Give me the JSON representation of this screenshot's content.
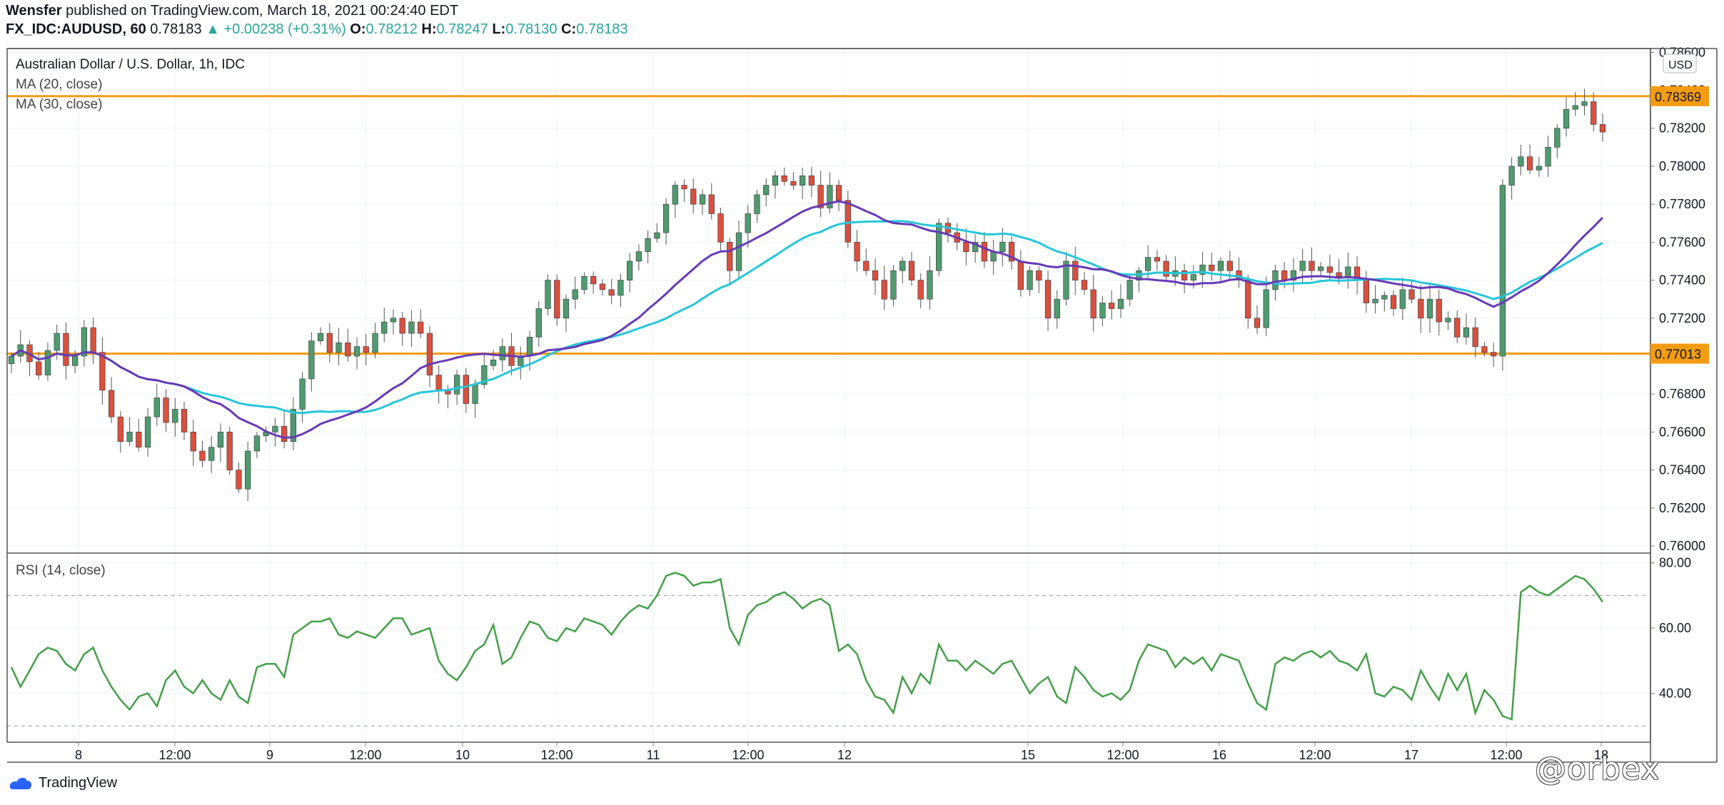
{
  "header": {
    "author": "Wensfer",
    "published_text": "published on TradingView.com, March 18, 2021 00:24:40 EDT",
    "symbol": "FX_IDC:AUDUSD, 60",
    "last": "0.78183",
    "change_arrow": "▲",
    "change": "+0.00238 (+0.31%)",
    "o_label": "O:",
    "o_value": "0.78212",
    "h_label": "H:",
    "h_value": "0.78247",
    "l_label": "L:",
    "l_value": "0.78130",
    "c_label": "C:",
    "c_value": "0.78183"
  },
  "legend": {
    "title": "Australian Dollar / U.S. Dollar, 1h, IDC",
    "ma20": "MA (20, close)",
    "ma30": "MA (30, close)",
    "rsi": "RSI (14, close)"
  },
  "footer": {
    "brand": "TradingView",
    "watermark": "@orbex"
  },
  "colors": {
    "up_candle": "#4f9b6f",
    "down_candle": "#d9503f",
    "ma20": "#673ab7",
    "ma30": "#26c6da",
    "rsi": "#43a047",
    "hline": "#f39c12"
  },
  "chart_data": [
    {
      "type": "candlestick",
      "title": "Australian Dollar / U.S. Dollar, 1h, IDC",
      "y_axis_unit_badge": "USD",
      "ylim": [
        0.7597,
        0.7862
      ],
      "y_ticks": [
        "0.78600",
        "0.78400",
        "0.78200",
        "0.78000",
        "0.77800",
        "0.77600",
        "0.77400",
        "0.77200",
        "0.77000",
        "0.76800",
        "0.76600",
        "0.76400",
        "0.76200",
        "0.76000"
      ],
      "x_ticks": [
        "8",
        "12:00",
        "9",
        "12:00",
        "10",
        "12:00",
        "11",
        "12:00",
        "12",
        "15",
        "12:00",
        "16",
        "12:00",
        "17",
        "12:00",
        "18"
      ],
      "horizontal_lines": [
        {
          "label": "0.78369",
          "value": 0.78369
        },
        {
          "label": "0.77013",
          "value": 0.77013
        }
      ],
      "close_path": [
        0.77,
        0.7706,
        0.7697,
        0.769,
        0.7703,
        0.7712,
        0.7695,
        0.77,
        0.7715,
        0.7702,
        0.7682,
        0.7668,
        0.7655,
        0.766,
        0.7652,
        0.7668,
        0.7678,
        0.7665,
        0.7672,
        0.766,
        0.765,
        0.7645,
        0.7652,
        0.766,
        0.764,
        0.763,
        0.765,
        0.7658,
        0.766,
        0.7663,
        0.7655,
        0.7672,
        0.7688,
        0.7708,
        0.7712,
        0.7702,
        0.7707,
        0.77,
        0.7705,
        0.7702,
        0.7712,
        0.7718,
        0.772,
        0.7712,
        0.7718,
        0.7712,
        0.769,
        0.7682,
        0.768,
        0.769,
        0.7675,
        0.7685,
        0.7695,
        0.7698,
        0.7705,
        0.7695,
        0.77,
        0.771,
        0.7725,
        0.774,
        0.772,
        0.773,
        0.7735,
        0.7742,
        0.7738,
        0.7735,
        0.7732,
        0.774,
        0.775,
        0.7755,
        0.7762,
        0.7765,
        0.778,
        0.779,
        0.7788,
        0.778,
        0.7785,
        0.7775,
        0.776,
        0.7745,
        0.7765,
        0.7775,
        0.7785,
        0.779,
        0.7795,
        0.7792,
        0.779,
        0.7795,
        0.779,
        0.7778,
        0.779,
        0.7782,
        0.776,
        0.775,
        0.7745,
        0.774,
        0.773,
        0.7745,
        0.775,
        0.774,
        0.773,
        0.7745,
        0.777,
        0.7765,
        0.776,
        0.7755,
        0.776,
        0.775,
        0.7755,
        0.776,
        0.775,
        0.7735,
        0.7745,
        0.774,
        0.772,
        0.773,
        0.775,
        0.774,
        0.7735,
        0.772,
        0.7728,
        0.7725,
        0.773,
        0.774,
        0.7745,
        0.7752,
        0.775,
        0.7742,
        0.7745,
        0.774,
        0.7743,
        0.7748,
        0.7745,
        0.775,
        0.7745,
        0.774,
        0.772,
        0.7715,
        0.7735,
        0.7745,
        0.774,
        0.7745,
        0.775,
        0.7745,
        0.7747,
        0.7744,
        0.7742,
        0.7747,
        0.774,
        0.7728,
        0.773,
        0.7732,
        0.7725,
        0.7735,
        0.773,
        0.772,
        0.773,
        0.7718,
        0.772,
        0.771,
        0.7715,
        0.7705,
        0.7702,
        0.77,
        0.779,
        0.78,
        0.7805,
        0.7798,
        0.78,
        0.781,
        0.782,
        0.783,
        0.7832,
        0.7834,
        0.7822,
        0.7818
      ]
    },
    {
      "type": "line",
      "title": "RSI (14, close)",
      "ylim": [
        25,
        83
      ],
      "y_ticks": [
        "80.00",
        "60.00",
        "40.00"
      ],
      "reference_lines": [
        70,
        30
      ],
      "series": [
        {
          "name": "RSI (14, close)",
          "values": [
            48,
            42,
            47,
            52,
            54,
            53,
            49,
            47,
            52,
            54,
            47,
            42,
            38,
            35,
            39,
            40,
            36,
            44,
            47,
            42,
            40,
            44,
            40,
            38,
            44,
            39,
            37,
            48,
            49,
            49,
            45,
            58,
            60,
            62,
            62,
            63,
            58,
            57,
            59,
            58,
            57,
            60,
            63,
            63,
            58,
            59,
            60,
            50,
            46,
            44,
            48,
            53,
            55,
            61,
            49,
            51,
            57,
            62,
            61,
            57,
            56,
            60,
            59,
            63,
            62,
            61,
            58,
            62,
            65,
            67,
            66,
            70,
            76,
            77,
            76,
            73,
            74,
            74,
            75,
            60,
            55,
            64,
            67,
            68,
            70,
            71,
            69,
            66,
            68,
            69,
            67,
            53,
            55,
            52,
            44,
            39,
            38,
            34,
            45,
            40,
            46,
            43,
            55,
            50,
            50,
            47,
            50,
            48,
            46,
            49,
            50,
            45,
            40,
            43,
            45,
            39,
            37,
            48,
            45,
            41,
            39,
            40,
            38,
            41,
            50,
            55,
            54,
            53,
            48,
            51,
            49,
            51,
            47,
            52,
            51,
            50,
            43,
            37,
            35,
            49,
            51,
            50,
            52,
            53,
            51,
            53,
            50,
            49,
            47,
            52,
            40,
            39,
            42,
            41,
            38,
            47,
            42,
            38,
            46,
            41,
            46,
            34,
            41,
            38,
            33,
            32,
            71,
            73,
            71,
            70,
            72,
            74,
            76,
            75,
            72,
            68
          ]
        }
      ]
    }
  ]
}
